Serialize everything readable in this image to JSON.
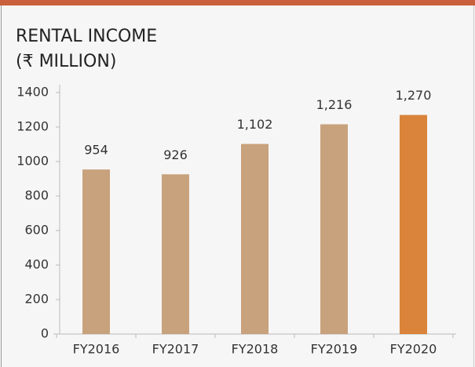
{
  "chart_data": {
    "type": "bar",
    "title": "RENTAL INCOME",
    "subtitle": "(₹ MILLION)",
    "categories": [
      "FY2016",
      "FY2017",
      "FY2018",
      "FY2019",
      "FY2020"
    ],
    "values": [
      954,
      926,
      1102,
      1216,
      1270
    ],
    "value_labels": [
      "954",
      "926",
      "1,102",
      "1,216",
      "1,270"
    ],
    "colors": [
      "#c8a27c",
      "#c8a27c",
      "#c8a27c",
      "#c8a27c",
      "#d9843a"
    ],
    "ylim": [
      0,
      1400
    ],
    "yticks": [
      0,
      200,
      400,
      600,
      800,
      1000,
      1200,
      1400
    ],
    "grid": false
  }
}
